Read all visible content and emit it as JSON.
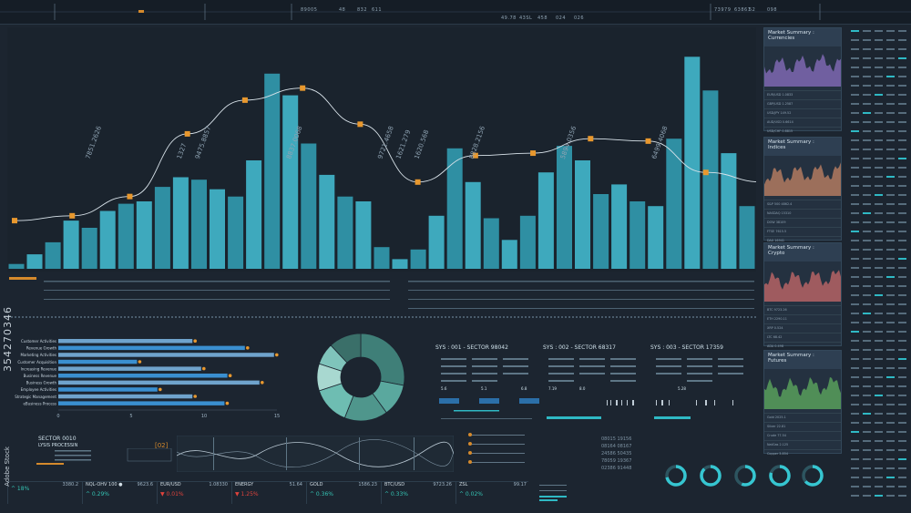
{
  "top_bar": {
    "numbers": [
      "89005",
      "48",
      "832",
      "611",
      "73979",
      "63861",
      "52",
      "098",
      "458",
      "024",
      "49.78",
      "43SL",
      "026"
    ]
  },
  "main_chart": {
    "bars": [
      2,
      6,
      11,
      20,
      17,
      24,
      27,
      28,
      34,
      38,
      37,
      33,
      30,
      45,
      81,
      72,
      52,
      39,
      30,
      28,
      9,
      4,
      8,
      22,
      50,
      36,
      21,
      12,
      22,
      40,
      51,
      45,
      31,
      35,
      28,
      26,
      54,
      88,
      74,
      48,
      26
    ],
    "line": [
      20,
      22,
      30,
      56,
      70,
      75,
      60,
      36,
      47,
      48,
      54,
      53,
      40,
      36
    ],
    "labels": [
      {
        "text": "7851.2626",
        "i": 4
      },
      {
        "text": "9475.8857",
        "i": 10
      },
      {
        "text": "1327",
        "i": 9
      },
      {
        "text": "8837.0068",
        "i": 15
      },
      {
        "text": "1620.568",
        "i": 22
      },
      {
        "text": "9721.4658",
        "i": 20
      },
      {
        "text": "1621.279",
        "i": 21
      },
      {
        "text": "8828.2156",
        "i": 25
      },
      {
        "text": "5894.0356",
        "i": 30
      },
      {
        "text": "6499.4068",
        "i": 35
      }
    ]
  },
  "hbar_chart": {
    "categories": [
      "Customer Activities",
      "Revenue Growth",
      "Marketing Activities",
      "Customer Acquisition",
      "Increasing Revenue",
      "Business Revenue",
      "Business Growth",
      "Employee Activities",
      "Strategic Management",
      "eBusiness Process"
    ],
    "values": [
      9.2,
      12.8,
      14.8,
      5.4,
      9.8,
      11.6,
      13.8,
      6.8,
      9.2,
      11.4
    ],
    "ticks": [
      "0",
      "5",
      "10",
      "15"
    ],
    "xlim": [
      0,
      15
    ]
  },
  "donut": {
    "slices": [
      28,
      12,
      16,
      14,
      10,
      8,
      12
    ]
  },
  "sys_panels": [
    {
      "title": "SYS : 001 - SECTOR 98042",
      "tags": [
        "5.6",
        "5.1",
        "6.8"
      ]
    },
    {
      "title": "SYS : 002 - SECTOR 68317",
      "tags": [
        "7.19",
        "8.0"
      ]
    },
    {
      "title": "SYS : 003 - SECTOR 17359",
      "tags": [
        "5.28"
      ]
    }
  ],
  "sector_panel": {
    "title": "SECTOR 0010",
    "subtitle": "LYSIS PROCESSIN",
    "readout": "[02]"
  },
  "number_list": [
    "08015 19156",
    "08164 08167",
    "24586 50435",
    "78059 19367",
    "02386 91448"
  ],
  "market_summaries": [
    {
      "title": "Market Summary :",
      "subtitle": "Currencies",
      "color": "#8a6fc0",
      "rows": [
        "EUR/USD 1.0833",
        "GBP/USD 1.2587",
        "USD/JPY 149.52",
        "AUD/USD 0.6614",
        "USD/CHF 0.8815"
      ]
    },
    {
      "title": "Market Summary :",
      "subtitle": "Indices",
      "color": "#c48464",
      "rows": [
        "S&P 500 4862.4",
        "NASDAQ 15310",
        "DOW 38109",
        "FTSE 7615.5",
        "DAX 16941"
      ]
    },
    {
      "title": "Market Summary :",
      "subtitle": "Crypto",
      "color": "#c86a6a",
      "rows": [
        "BTC 9723.26",
        "ETH 2290.11",
        "XRP 0.524",
        "LTC 68.42",
        "ADA 0.498"
      ]
    },
    {
      "title": "Market Summary :",
      "subtitle": "Futures",
      "color": "#5fae5f",
      "rows": [
        "Gold 2025.1",
        "Silver 22.81",
        "Crude 77.54",
        "NatGas 2.125",
        "Copper 3.854"
      ]
    }
  ],
  "ticker": [
    {
      "name": "",
      "value": "3380.2",
      "pct": "18%",
      "neg": false
    },
    {
      "name": "NQL-OHV 100 ●",
      "value": "9623.6",
      "pct": "0.29%",
      "neg": false
    },
    {
      "name": "EUR/USD",
      "value": "1.08330",
      "pct": "0.01%",
      "neg": true
    },
    {
      "name": "ENERGY",
      "value": "51.64",
      "pct": "1.25%",
      "neg": true
    },
    {
      "name": "GOLD",
      "value": "1586.23",
      "pct": "0.36%",
      "neg": false
    },
    {
      "name": "BTC/USD",
      "value": "9723.26",
      "pct": "0.33%",
      "neg": false
    },
    {
      "name": "ZSL",
      "value": "99.17",
      "pct": "0.02%",
      "neg": false
    }
  ],
  "watermark": "354270346",
  "stock_watermark": "Adobe Stock"
}
